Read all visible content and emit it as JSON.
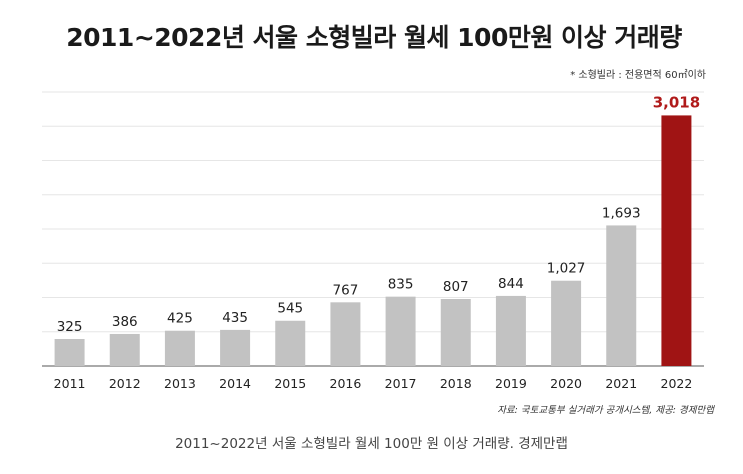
{
  "page": {
    "caption": "2011~2022년 서울 소형빌라 월세 100만 원 이상 거래량. 경제만랩"
  },
  "chart_data": {
    "type": "bar",
    "title": "2011~2022년 서울 소형빌라 월세 100만원 이상 거래량",
    "note": "* 소형빌라 : 전용면적 60㎡이하",
    "source": "자료: 국토교통부 실거래가 공개시스템, 제공: 경제만랩",
    "categories": [
      "2011",
      "2012",
      "2013",
      "2014",
      "2015",
      "2016",
      "2017",
      "2018",
      "2019",
      "2020",
      "2021",
      "2022"
    ],
    "values": [
      325,
      386,
      425,
      435,
      545,
      767,
      835,
      807,
      844,
      1027,
      1693,
      3018
    ],
    "value_labels": [
      "325",
      "386",
      "425",
      "435",
      "545",
      "767",
      "835",
      "807",
      "844",
      "1,027",
      "1,693",
      "3,018"
    ],
    "ylim": [
      0,
      3300
    ],
    "grid": true,
    "highlight_index": 11,
    "colors": {
      "bar": "#c2c2c2",
      "highlight": "#a01414",
      "highlight_label": "#b01a1a",
      "grid": "#e6e6e6",
      "axis": "#555555"
    }
  }
}
